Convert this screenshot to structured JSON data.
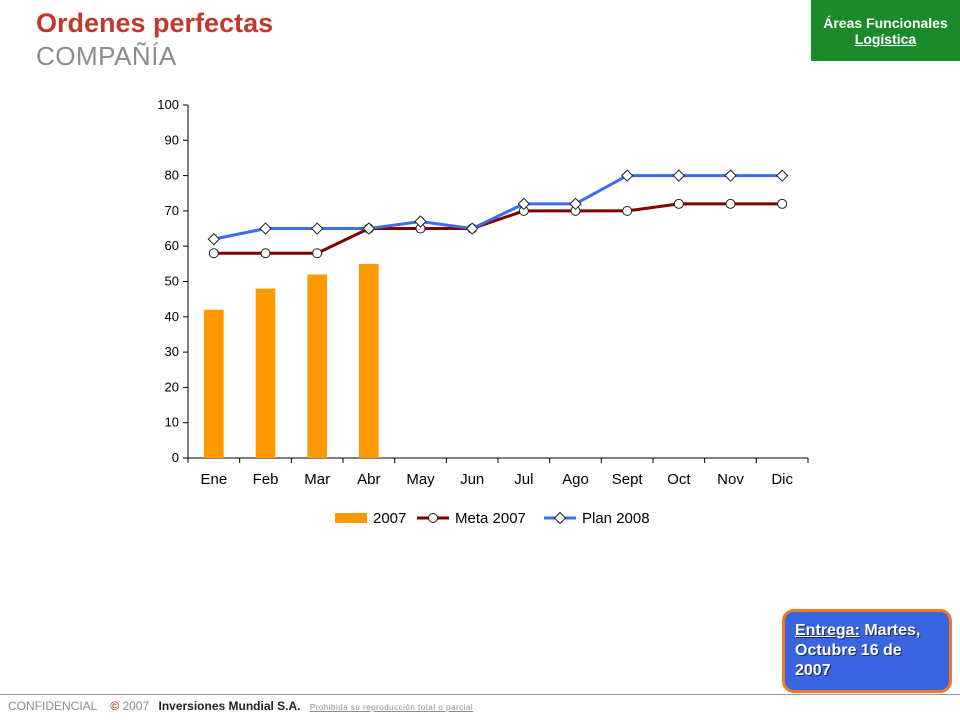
{
  "header": {
    "title": "Ordenes perfectas",
    "subtitle": "COMPAÑÍA"
  },
  "area_box": {
    "line1": "Áreas Funcionales",
    "line2": "Logística",
    "color": "#1a8a2a"
  },
  "chart_data": {
    "type": "bar",
    "categories": [
      "Ene",
      "Feb",
      "Mar",
      "Abr",
      "May",
      "Jun",
      "Jul",
      "Ago",
      "Sept",
      "Oct",
      "Nov",
      "Dic"
    ],
    "ylim": [
      0,
      100
    ],
    "yticks": [
      0,
      10,
      20,
      30,
      40,
      50,
      60,
      70,
      80,
      90,
      100
    ],
    "grid": false,
    "legend_position": "bottom",
    "series": [
      {
        "name": "2007",
        "kind": "bar",
        "color": "#ff9900",
        "values": [
          42,
          48,
          52,
          55,
          null,
          null,
          null,
          null,
          null,
          null,
          null,
          null
        ]
      },
      {
        "name": "Meta 2007",
        "kind": "line",
        "marker": "circle",
        "color": "#800000",
        "values": [
          58,
          58,
          58,
          65,
          65,
          65,
          70,
          70,
          70,
          72,
          72,
          72
        ]
      },
      {
        "name": "Plan 2008",
        "kind": "line",
        "marker": "diamond",
        "color": "#3a6fe8",
        "values": [
          62,
          65,
          65,
          65,
          67,
          65,
          72,
          72,
          80,
          80,
          80,
          80
        ]
      }
    ]
  },
  "delivery": {
    "label": "Entrega:",
    "text": " Martes, Octubre 16 de 2007"
  },
  "footer": {
    "confidential": "CONFIDENCIAL",
    "copyright": "©",
    "year": "2007",
    "company": "Inversiones Mundial S.A.",
    "note": "Prohibida su reproducción total o parcial"
  }
}
